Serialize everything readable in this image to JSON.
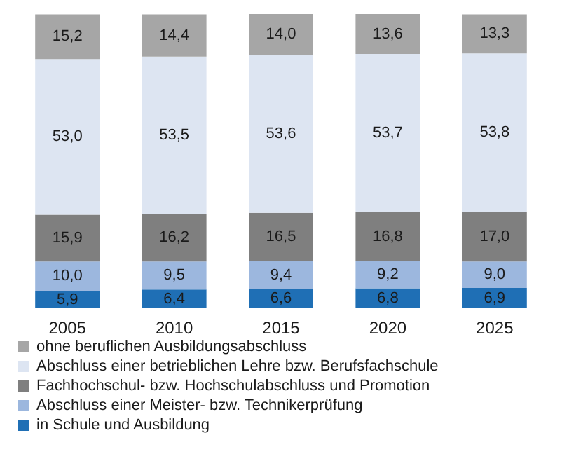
{
  "chart_data": {
    "type": "bar",
    "stacked": true,
    "categories": [
      "2005",
      "2010",
      "2015",
      "2020",
      "2025"
    ],
    "legend": "bottom",
    "series": [
      {
        "name": "in Schule und Ausbildung",
        "color": "#1f6fb5",
        "values": [
          5.9,
          6.4,
          6.6,
          6.8,
          6.9
        ],
        "value_labels": [
          "5,9",
          "6,4",
          "6,6",
          "6,8",
          "6,9"
        ]
      },
      {
        "name": "Abschluss einer Meister- bzw. Technikerprüfung",
        "color": "#9cb7de",
        "values": [
          10.0,
          9.5,
          9.4,
          9.2,
          9.0
        ],
        "value_labels": [
          "10,0",
          "9,5",
          "9,4",
          "9,2",
          "9,0"
        ]
      },
      {
        "name": "Fachhochschul- bzw. Hochschulabschluss und Promotion",
        "color": "#7f7f7f",
        "values": [
          15.9,
          16.2,
          16.5,
          16.8,
          17.0
        ],
        "value_labels": [
          "15,9",
          "16,2",
          "16,5",
          "16,8",
          "17,0"
        ]
      },
      {
        "name": "Abschluss einer betrieblichen Lehre bzw. Berufsfachschule",
        "color": "#dde5f2",
        "values": [
          53.0,
          53.5,
          53.6,
          53.7,
          53.8
        ],
        "value_labels": [
          "53,0",
          "53,5",
          "53,6",
          "53,7",
          "53,8"
        ]
      },
      {
        "name": "ohne beruflichen Ausbildungsabschluss",
        "color": "#a6a6a6",
        "values": [
          15.2,
          14.4,
          14.0,
          13.6,
          13.3
        ],
        "value_labels": [
          "15,2",
          "14,4",
          "14,0",
          "13,6",
          "13,3"
        ]
      }
    ]
  }
}
